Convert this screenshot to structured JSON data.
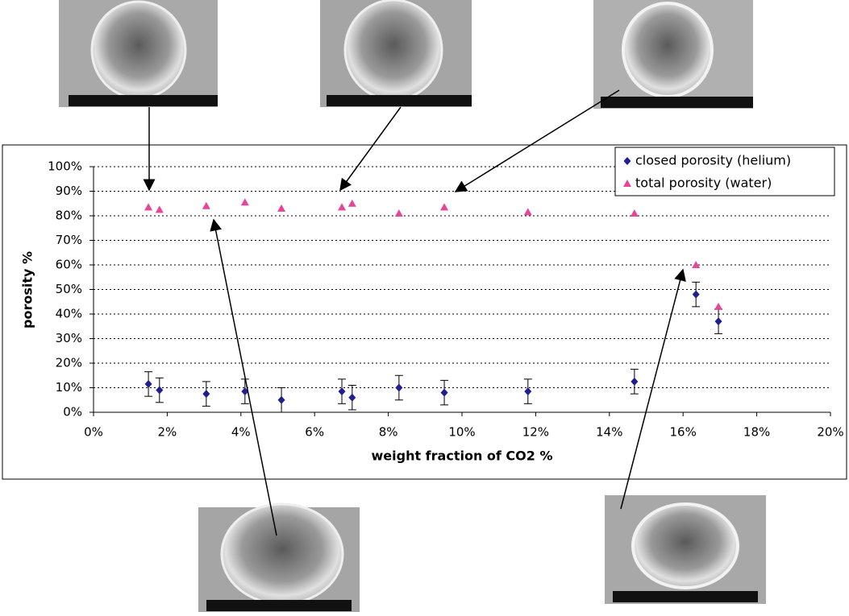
{
  "chart_data": {
    "type": "scatter",
    "x_label": "weight fraction of CO2 %",
    "y_label": "porosity %",
    "xlim": [
      0,
      20
    ],
    "ylim": [
      0,
      100
    ],
    "xticks": [
      {
        "value": 0,
        "label": "0%"
      },
      {
        "value": 2,
        "label": "2%"
      },
      {
        "value": 4,
        "label": "4%"
      },
      {
        "value": 6,
        "label": "6%"
      },
      {
        "value": 8,
        "label": "8%"
      },
      {
        "value": 10,
        "label": "10%"
      },
      {
        "value": 12,
        "label": "12%"
      },
      {
        "value": 14,
        "label": "14%"
      },
      {
        "value": 16,
        "label": "16%"
      },
      {
        "value": 18,
        "label": "18%"
      },
      {
        "value": 20,
        "label": "20%"
      }
    ],
    "yticks": [
      {
        "value": 0,
        "label": "0%"
      },
      {
        "value": 10,
        "label": "10%"
      },
      {
        "value": 20,
        "label": "20%"
      },
      {
        "value": 30,
        "label": "30%"
      },
      {
        "value": 40,
        "label": "40%"
      },
      {
        "value": 50,
        "label": "50%"
      },
      {
        "value": 60,
        "label": "60%"
      },
      {
        "value": 70,
        "label": "70%"
      },
      {
        "value": 80,
        "label": "80%"
      },
      {
        "value": 90,
        "label": "90%"
      },
      {
        "value": 100,
        "label": "100%"
      }
    ],
    "grid": true,
    "legend": "top-right",
    "series": [
      {
        "name": "closed porosity (helium)",
        "color": "#1f1f8f",
        "marker": "diamond",
        "x": [
          1.49,
          1.79,
          3.06,
          4.11,
          5.1,
          6.74,
          7.02,
          8.29,
          9.52,
          11.79,
          14.68,
          16.35,
          16.96
        ],
        "values": [
          11.5,
          9,
          7.5,
          8.5,
          5,
          8.5,
          6,
          10,
          8,
          8.5,
          12.5,
          48,
          37
        ],
        "errors": [
          5,
          5,
          5,
          5,
          5,
          5,
          5,
          5,
          5,
          5,
          5,
          5,
          5
        ]
      },
      {
        "name": "total porosity (water)",
        "color": "#e8449a",
        "marker": "triangle",
        "x": [
          1.49,
          1.79,
          3.06,
          4.11,
          5.1,
          6.74,
          7.02,
          8.29,
          9.52,
          11.79,
          14.68,
          16.35,
          16.96
        ],
        "values": [
          83.5,
          82.5,
          84,
          85.5,
          83,
          83.5,
          85,
          81,
          83.5,
          81.5,
          81,
          60,
          43
        ]
      }
    ]
  }
}
